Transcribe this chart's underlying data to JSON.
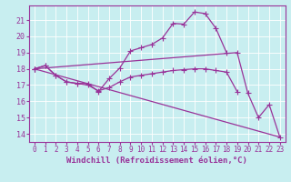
{
  "background_color": "#c8eef0",
  "grid_color": "#ffffff",
  "line_color": "#993399",
  "marker": "+",
  "markersize": 4,
  "linewidth": 0.9,
  "xlabel": "Windchill (Refroidissement éolien,°C)",
  "ylabel_ticks": [
    14,
    15,
    16,
    17,
    18,
    19,
    20,
    21
  ],
  "xlim": [
    -0.5,
    23.5
  ],
  "ylim": [
    13.5,
    21.9
  ],
  "series": [
    {
      "x": [
        0,
        1,
        2,
        3,
        4,
        5,
        6,
        7,
        8,
        9,
        10,
        11,
        12,
        13,
        14,
        15,
        16,
        17,
        18
      ],
      "y": [
        18.0,
        18.2,
        17.6,
        17.2,
        17.1,
        17.1,
        16.6,
        17.4,
        18.05,
        19.1,
        19.3,
        19.5,
        19.9,
        20.8,
        20.75,
        21.5,
        21.4,
        20.5,
        19.0
      ]
    },
    {
      "x": [
        0,
        1,
        2,
        3,
        4,
        5,
        6,
        7,
        8,
        9,
        10,
        11,
        12,
        13,
        14,
        15,
        16,
        17,
        18,
        19
      ],
      "y": [
        18.0,
        18.2,
        17.6,
        17.2,
        17.1,
        17.0,
        16.65,
        16.85,
        17.2,
        17.5,
        17.6,
        17.7,
        17.8,
        17.9,
        17.95,
        18.0,
        18.0,
        17.9,
        17.8,
        16.6
      ]
    },
    {
      "x": [
        0,
        19,
        20,
        21,
        22,
        23
      ],
      "y": [
        18.0,
        19.0,
        16.5,
        15.0,
        15.8,
        13.8
      ]
    }
  ],
  "xtick_labels": [
    "0",
    "1",
    "2",
    "3",
    "4",
    "5",
    "6",
    "7",
    "8",
    "9",
    "10",
    "11",
    "12",
    "13",
    "14",
    "15",
    "16",
    "17",
    "18",
    "19",
    "20",
    "21",
    "22",
    "23"
  ],
  "tick_fontsize": 5.5,
  "xlabel_fontsize": 6.5,
  "ytick_fontsize": 6
}
